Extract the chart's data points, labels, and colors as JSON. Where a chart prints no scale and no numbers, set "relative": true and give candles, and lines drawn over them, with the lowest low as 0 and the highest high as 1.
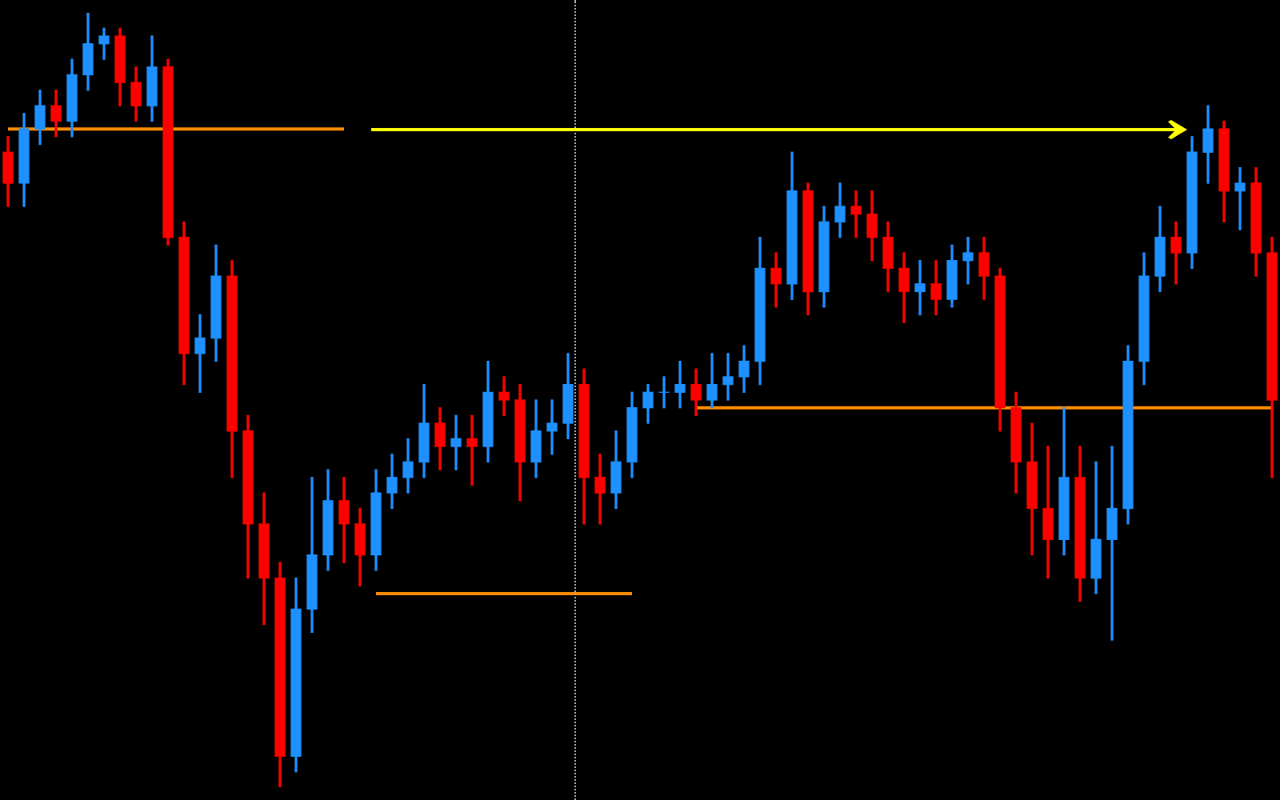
{
  "chart_data": {
    "type": "candlestick",
    "relative": true,
    "categories": [
      null,
      null,
      null,
      null,
      null,
      null,
      null,
      null,
      null,
      null,
      null,
      null,
      null,
      null,
      null,
      null,
      null,
      null,
      null,
      null,
      null,
      null,
      null,
      null,
      null,
      null,
      null,
      null,
      null,
      null,
      null,
      null,
      null,
      null,
      null,
      null,
      null,
      null,
      null,
      null,
      null,
      null,
      null,
      null,
      null,
      null,
      null,
      null,
      null,
      null,
      null,
      null,
      null,
      null,
      null,
      null,
      null,
      null,
      null,
      null,
      null,
      null,
      null,
      null,
      null,
      null,
      null,
      null,
      null,
      null,
      null,
      null,
      null,
      null,
      null,
      null,
      null,
      null,
      null,
      null
    ],
    "ohlc": [
      [
        0.82,
        0.84,
        0.75,
        0.78
      ],
      [
        0.78,
        0.87,
        0.75,
        0.85
      ],
      [
        0.85,
        0.9,
        0.83,
        0.88
      ],
      [
        0.88,
        0.9,
        0.84,
        0.86
      ],
      [
        0.86,
        0.94,
        0.84,
        0.92
      ],
      [
        0.92,
        1.0,
        0.9,
        0.96
      ],
      [
        0.96,
        0.98,
        0.94,
        0.97
      ],
      [
        0.97,
        0.98,
        0.88,
        0.91
      ],
      [
        0.91,
        0.93,
        0.86,
        0.88
      ],
      [
        0.88,
        0.97,
        0.86,
        0.93
      ],
      [
        0.93,
        0.94,
        0.7,
        0.71
      ],
      [
        0.71,
        0.73,
        0.52,
        0.56
      ],
      [
        0.56,
        0.61,
        0.51,
        0.58
      ],
      [
        0.58,
        0.7,
        0.55,
        0.66
      ],
      [
        0.66,
        0.68,
        0.4,
        0.46
      ],
      [
        0.46,
        0.48,
        0.27,
        0.34
      ],
      [
        0.34,
        0.38,
        0.21,
        0.27
      ],
      [
        0.27,
        0.29,
        0.0,
        0.04
      ],
      [
        0.04,
        0.27,
        0.02,
        0.23
      ],
      [
        0.23,
        0.4,
        0.2,
        0.3
      ],
      [
        0.3,
        0.41,
        0.28,
        0.37
      ],
      [
        0.37,
        0.4,
        0.29,
        0.34
      ],
      [
        0.34,
        0.36,
        0.26,
        0.3
      ],
      [
        0.3,
        0.41,
        0.28,
        0.38
      ],
      [
        0.38,
        0.43,
        0.36,
        0.4
      ],
      [
        0.4,
        0.45,
        0.38,
        0.42
      ],
      [
        0.42,
        0.52,
        0.4,
        0.47
      ],
      [
        0.47,
        0.49,
        0.41,
        0.44
      ],
      [
        0.44,
        0.48,
        0.41,
        0.45
      ],
      [
        0.45,
        0.48,
        0.39,
        0.44
      ],
      [
        0.44,
        0.55,
        0.42,
        0.51
      ],
      [
        0.51,
        0.53,
        0.48,
        0.5
      ],
      [
        0.5,
        0.52,
        0.37,
        0.42
      ],
      [
        0.42,
        0.5,
        0.4,
        0.46
      ],
      [
        0.46,
        0.5,
        0.43,
        0.47
      ],
      [
        0.47,
        0.56,
        0.45,
        0.52
      ],
      [
        0.52,
        0.54,
        0.34,
        0.4
      ],
      [
        0.4,
        0.43,
        0.34,
        0.38
      ],
      [
        0.38,
        0.46,
        0.36,
        0.42
      ],
      [
        0.42,
        0.51,
        0.4,
        0.49
      ],
      [
        0.49,
        0.52,
        0.47,
        0.51
      ],
      [
        0.51,
        0.53,
        0.49,
        0.51
      ],
      [
        0.51,
        0.55,
        0.49,
        0.52
      ],
      [
        0.52,
        0.54,
        0.48,
        0.5
      ],
      [
        0.5,
        0.56,
        0.49,
        0.52
      ],
      [
        0.52,
        0.56,
        0.5,
        0.53
      ],
      [
        0.53,
        0.57,
        0.51,
        0.55
      ],
      [
        0.55,
        0.71,
        0.52,
        0.67
      ],
      [
        0.67,
        0.69,
        0.62,
        0.65
      ],
      [
        0.65,
        0.82,
        0.63,
        0.77
      ],
      [
        0.77,
        0.78,
        0.61,
        0.64
      ],
      [
        0.64,
        0.75,
        0.62,
        0.73
      ],
      [
        0.73,
        0.78,
        0.71,
        0.75
      ],
      [
        0.75,
        0.77,
        0.71,
        0.74
      ],
      [
        0.74,
        0.77,
        0.68,
        0.71
      ],
      [
        0.71,
        0.73,
        0.64,
        0.67
      ],
      [
        0.67,
        0.69,
        0.6,
        0.64
      ],
      [
        0.64,
        0.68,
        0.61,
        0.65
      ],
      [
        0.65,
        0.68,
        0.61,
        0.63
      ],
      [
        0.63,
        0.7,
        0.62,
        0.68
      ],
      [
        0.68,
        0.71,
        0.65,
        0.69
      ],
      [
        0.69,
        0.71,
        0.63,
        0.66
      ],
      [
        0.66,
        0.67,
        0.46,
        0.49
      ],
      [
        0.49,
        0.51,
        0.38,
        0.42
      ],
      [
        0.42,
        0.47,
        0.3,
        0.36
      ],
      [
        0.36,
        0.44,
        0.27,
        0.32
      ],
      [
        0.32,
        0.49,
        0.3,
        0.4
      ],
      [
        0.4,
        0.44,
        0.24,
        0.27
      ],
      [
        0.27,
        0.42,
        0.25,
        0.32
      ],
      [
        0.32,
        0.44,
        0.19,
        0.36
      ],
      [
        0.36,
        0.57,
        0.34,
        0.55
      ],
      [
        0.55,
        0.69,
        0.52,
        0.66
      ],
      [
        0.66,
        0.75,
        0.64,
        0.71
      ],
      [
        0.71,
        0.73,
        0.65,
        0.69
      ],
      [
        0.69,
        0.84,
        0.67,
        0.82
      ],
      [
        0.82,
        0.88,
        0.78,
        0.85
      ],
      [
        0.85,
        0.86,
        0.73,
        0.77
      ],
      [
        0.77,
        0.8,
        0.72,
        0.78
      ],
      [
        0.78,
        0.8,
        0.66,
        0.69
      ],
      [
        0.69,
        0.71,
        0.4,
        0.5
      ]
    ],
    "colors": [
      "#ff0000",
      "#1e90ff",
      "#1e90ff",
      "#ff0000",
      "#1e90ff",
      "#1e90ff",
      "#1e90ff",
      "#ff0000",
      "#ff0000",
      "#1e90ff",
      "#ff0000",
      "#ff0000",
      "#1e90ff",
      "#1e90ff",
      "#ff0000",
      "#ff0000",
      "#ff0000",
      "#ff0000",
      "#1e90ff",
      "#1e90ff",
      "#1e90ff",
      "#ff0000",
      "#ff0000",
      "#1e90ff",
      "#1e90ff",
      "#1e90ff",
      "#1e90ff",
      "#ff0000",
      "#1e90ff",
      "#ff0000",
      "#1e90ff",
      "#ff0000",
      "#ff0000",
      "#1e90ff",
      "#1e90ff",
      "#1e90ff",
      "#ff0000",
      "#ff0000",
      "#1e90ff",
      "#1e90ff",
      "#1e90ff",
      "#1e90ff",
      "#1e90ff",
      "#ff0000",
      "#1e90ff",
      "#1e90ff",
      "#1e90ff",
      "#1e90ff",
      "#ff0000",
      "#1e90ff",
      "#ff0000",
      "#1e90ff",
      "#1e90ff",
      "#ff0000",
      "#ff0000",
      "#ff0000",
      "#ff0000",
      "#1e90ff",
      "#ff0000",
      "#1e90ff",
      "#1e90ff",
      "#ff0000",
      "#ff0000",
      "#ff0000",
      "#ff0000",
      "#ff0000",
      "#1e90ff",
      "#ff0000",
      "#1e90ff",
      "#1e90ff",
      "#1e90ff",
      "#1e90ff",
      "#1e90ff",
      "#ff0000",
      "#1e90ff",
      "#1e90ff",
      "#ff0000",
      "#1e90ff",
      "#ff0000",
      "#ff0000"
    ],
    "series": [
      {
        "type": "line",
        "color": "#ff8c00",
        "values": [
          0.85,
          0.85,
          0.85,
          0.85,
          0.85,
          0.85,
          0.85,
          0.85,
          0.85,
          0.85,
          0.85,
          0.85,
          0.85,
          0.85,
          0.85,
          0.85,
          0.85,
          0.85,
          0.85,
          0.85,
          0.85,
          0.85,
          null,
          null,
          null,
          null,
          null,
          null,
          null,
          null,
          null,
          null,
          null,
          null,
          null,
          null,
          null,
          null,
          null,
          null,
          null,
          null,
          null,
          null,
          null,
          null,
          null,
          null,
          null,
          null,
          null,
          null,
          null,
          null,
          null,
          null,
          null,
          null,
          null,
          null,
          null,
          null,
          null,
          null,
          null,
          null,
          null,
          null,
          null,
          null,
          null,
          null,
          null,
          null,
          null,
          null,
          null,
          null,
          null,
          null
        ]
      },
      {
        "type": "line",
        "color": "#ff8c00",
        "values": [
          null,
          null,
          null,
          null,
          null,
          null,
          null,
          null,
          null,
          null,
          null,
          null,
          null,
          null,
          null,
          null,
          null,
          null,
          null,
          null,
          null,
          null,
          null,
          0.25,
          0.25,
          0.25,
          0.25,
          0.25,
          0.25,
          0.25,
          0.25,
          0.25,
          0.25,
          0.25,
          0.25,
          0.25,
          0.25,
          0.25,
          0.25,
          0.25,
          null,
          null,
          null,
          null,
          null,
          null,
          null,
          null,
          null,
          null,
          null,
          null,
          null,
          null,
          null,
          null,
          null,
          null,
          null,
          null,
          null,
          null,
          null,
          null,
          null,
          null,
          null,
          null,
          null,
          null,
          null,
          null,
          null,
          null,
          null,
          null,
          null,
          null,
          null,
          null
        ]
      },
      {
        "type": "line",
        "color": "#ff8c00",
        "values": [
          null,
          null,
          null,
          null,
          null,
          null,
          null,
          null,
          null,
          null,
          null,
          null,
          null,
          null,
          null,
          null,
          null,
          null,
          null,
          null,
          null,
          null,
          null,
          null,
          null,
          null,
          null,
          null,
          null,
          null,
          null,
          null,
          null,
          null,
          null,
          null,
          null,
          null,
          null,
          null,
          null,
          null,
          null,
          0.49,
          0.49,
          0.49,
          0.49,
          0.49,
          0.49,
          0.49,
          0.49,
          0.49,
          0.49,
          0.49,
          0.49,
          0.49,
          0.49,
          0.49,
          0.49,
          0.49,
          0.49,
          0.49,
          0.49,
          0.49,
          0.49,
          0.49,
          0.49,
          0.49,
          0.49,
          0.49,
          0.49,
          0.49,
          0.49,
          0.49,
          0.49,
          0.49,
          0.49,
          0.49,
          0.49,
          0.49
        ]
      }
    ]
  }
}
